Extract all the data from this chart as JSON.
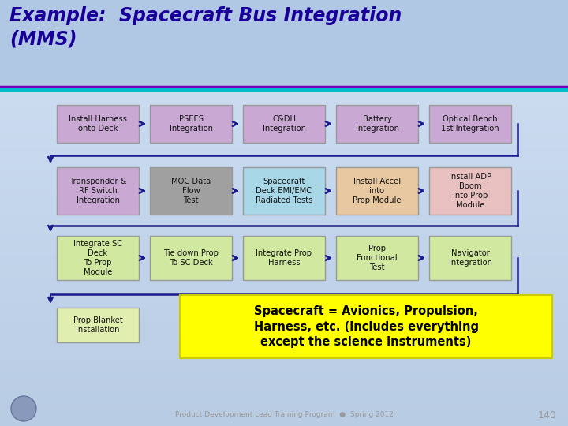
{
  "title_line1": "Example:  Spacecraft Bus Integration",
  "title_line2": "(MMS)",
  "title_color": "#1a0099",
  "title_fontsize": 17,
  "row1_boxes": [
    {
      "label": "Install Harness\nonto Deck",
      "color": "#C9A8D4"
    },
    {
      "label": "PSEES\nIntegration",
      "color": "#C9A8D4"
    },
    {
      "label": "C&DH\nIntegration",
      "color": "#C9A8D4"
    },
    {
      "label": "Battery\nIntegration",
      "color": "#C9A8D4"
    },
    {
      "label": "Optical Bench\n1st Integration",
      "color": "#C9A8D4"
    }
  ],
  "row2_boxes": [
    {
      "label": "Transponder &\nRF Switch\nIntegration",
      "color": "#C9A8D4"
    },
    {
      "label": "MOC Data\nFlow\nTest",
      "color": "#A0A0A0"
    },
    {
      "label": "Spacecraft\nDeck EMI/EMC\nRadiated Tests",
      "color": "#A8D8E8"
    },
    {
      "label": "Install Accel\ninto\nProp Module",
      "color": "#E8C8A0"
    },
    {
      "label": "Install ADP\nBoom\nInto Prop\nModule",
      "color": "#E8C0C0"
    }
  ],
  "row3_boxes": [
    {
      "label": "Integrate SC\nDeck\nTo Prop\nModule",
      "color": "#D0E8A0"
    },
    {
      "label": "Tie down Prop\nTo SC Deck",
      "color": "#D0E8A0"
    },
    {
      "label": "Integrate Prop\nHarness",
      "color": "#D0E8A0"
    },
    {
      "label": "Prop\nFunctional\nTest",
      "color": "#D0E8A0"
    },
    {
      "label": "Navigator\nIntegration",
      "color": "#D0E8A0"
    }
  ],
  "row4_box": {
    "label": "Prop Blanket\nInstallation",
    "color": "#E0EEB0"
  },
  "yellow_box_text": "Spacecraft = Avionics, Propulsion,\nHarness, etc. (includes everything\nexcept the science instruments)",
  "yellow_box_color": "#FFFF00",
  "arrow_color": "#1a1a8c",
  "footer_text": "Product Development Lead Training Program  ●  Spring 2012",
  "page_number": "140",
  "footer_color": "#999999",
  "sep_color1": "#7700BB",
  "sep_color2": "#00BBCC"
}
